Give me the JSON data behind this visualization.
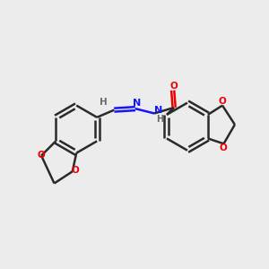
{
  "bg_color": "#ececec",
  "bond_color": "#2a2a2a",
  "N_color": "#1414ff",
  "O_color": "#ee0000",
  "H_color": "#6a6a6a",
  "line_width": 1.8,
  "dbo": 0.12,
  "xlim": [
    0,
    10
  ],
  "ylim": [
    0,
    10
  ]
}
